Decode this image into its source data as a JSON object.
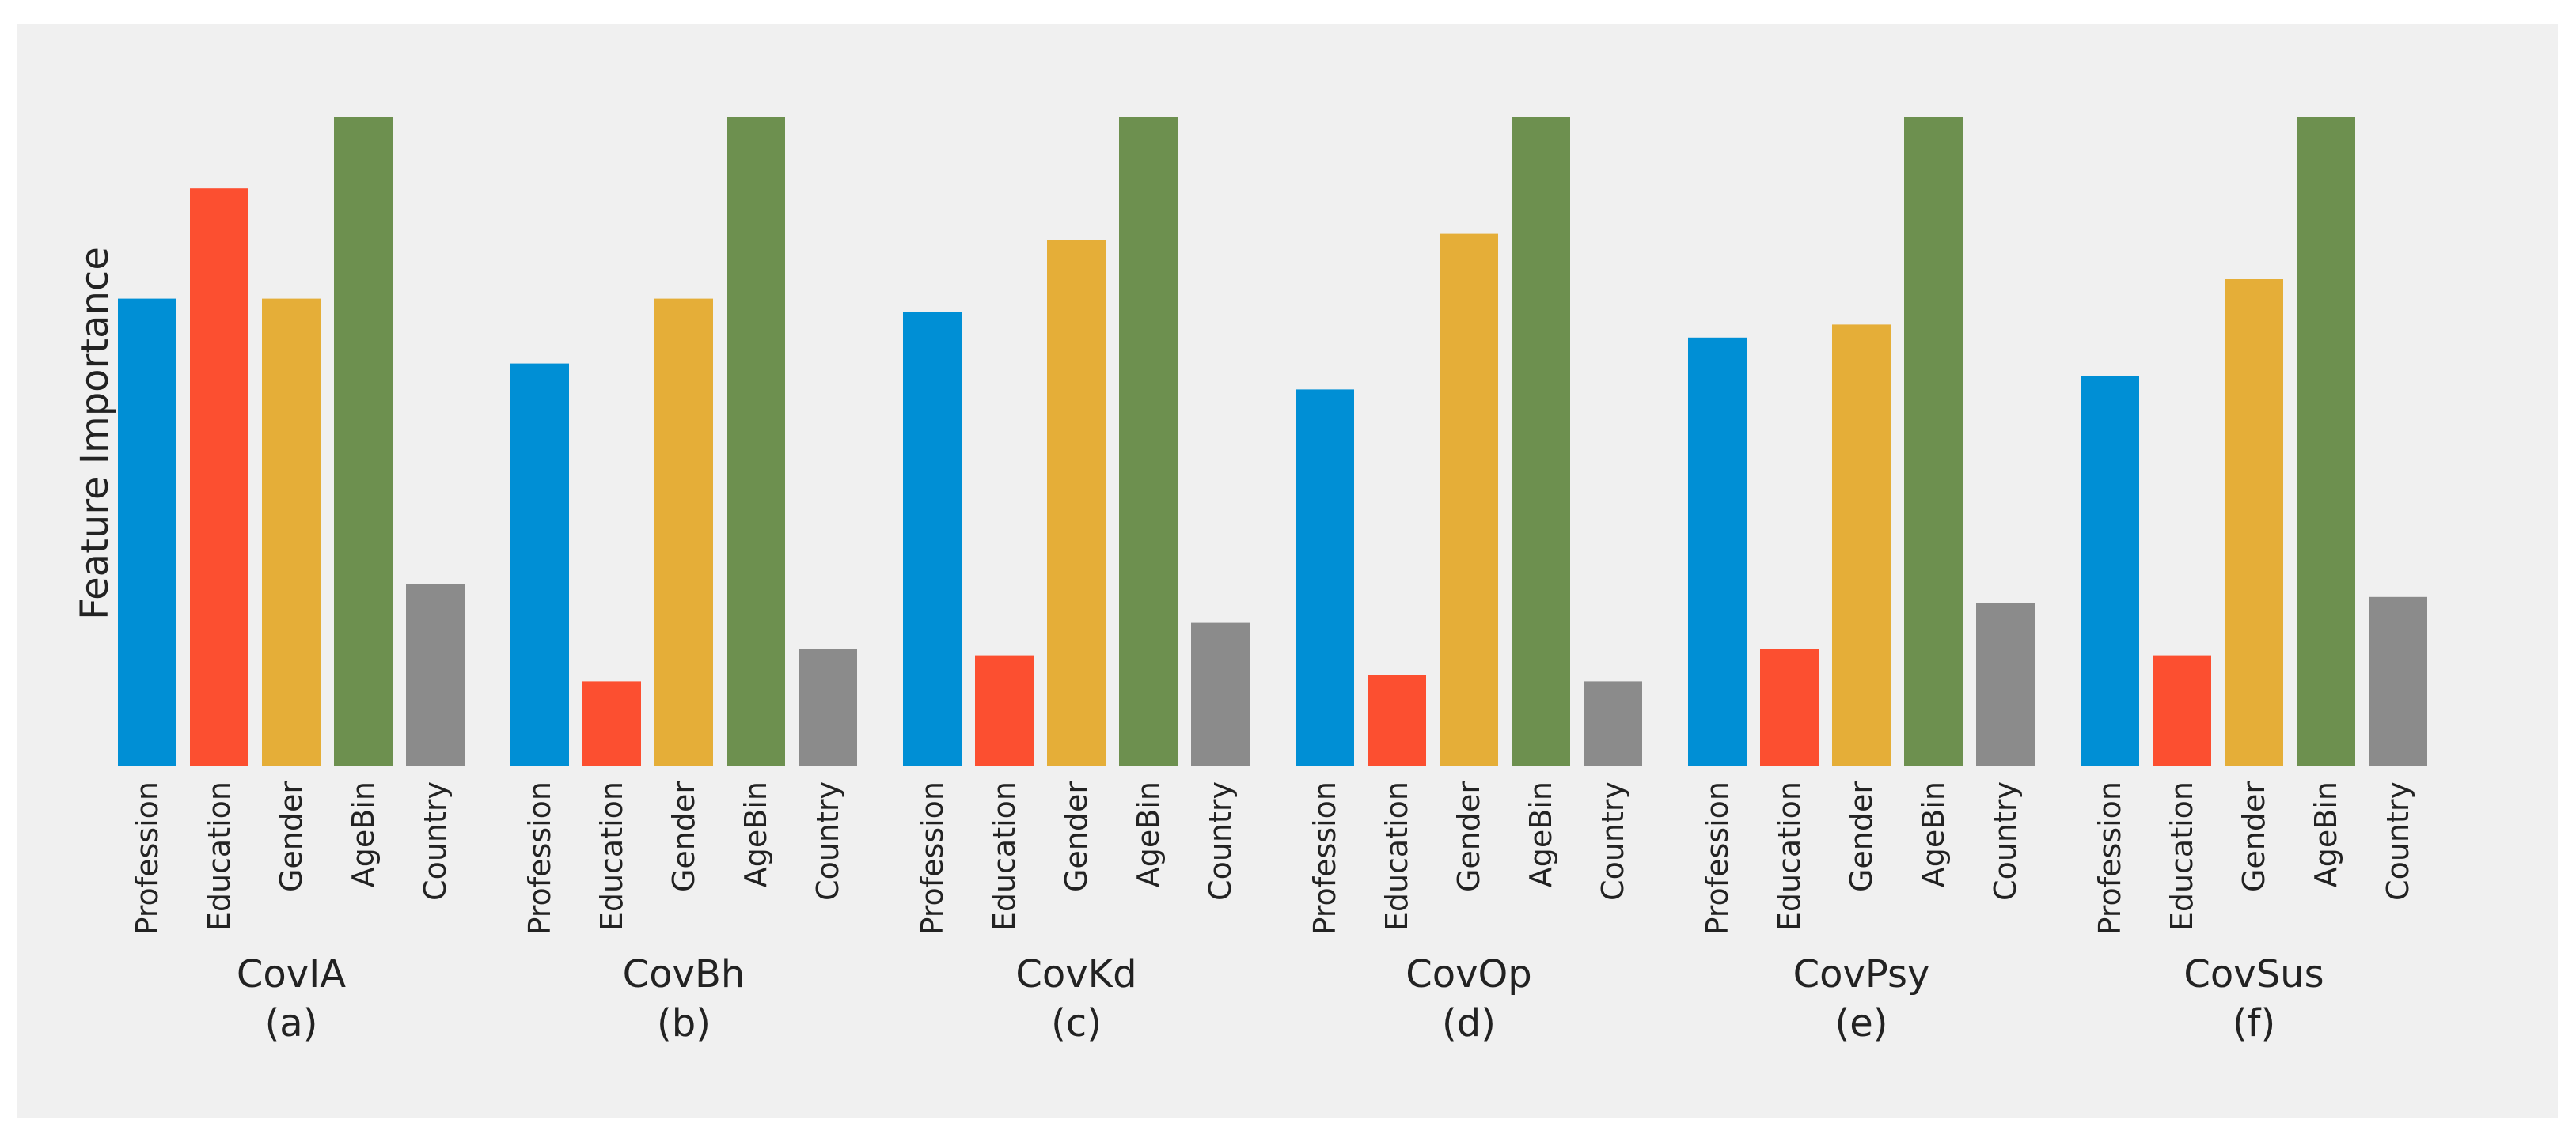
{
  "chart_data": {
    "type": "bar",
    "ylabel": "Feature Importance",
    "ylim": [
      0,
      1.0
    ],
    "categories": [
      "Profession",
      "Education",
      "Gender",
      "AgeBin",
      "Country"
    ],
    "colors": [
      "#008fd5",
      "#fc4f30",
      "#e5ae38",
      "#6d904f",
      "#8b8b8b"
    ],
    "panels": [
      {
        "title": "CovIA",
        "sub": "(a)",
        "values": [
          0.72,
          0.89,
          0.72,
          1.0,
          0.28
        ]
      },
      {
        "title": "CovBh",
        "sub": "(b)",
        "values": [
          0.62,
          0.13,
          0.72,
          1.0,
          0.18
        ]
      },
      {
        "title": "CovKd",
        "sub": "(c)",
        "values": [
          0.7,
          0.17,
          0.81,
          1.0,
          0.22
        ]
      },
      {
        "title": "CovOp",
        "sub": "(d)",
        "values": [
          0.58,
          0.14,
          0.82,
          1.0,
          0.13
        ]
      },
      {
        "title": "CovPsy",
        "sub": "(e)",
        "values": [
          0.66,
          0.18,
          0.68,
          1.0,
          0.25
        ]
      },
      {
        "title": "CovSus",
        "sub": "(f)",
        "values": [
          0.6,
          0.17,
          0.75,
          1.0,
          0.26
        ]
      }
    ]
  }
}
